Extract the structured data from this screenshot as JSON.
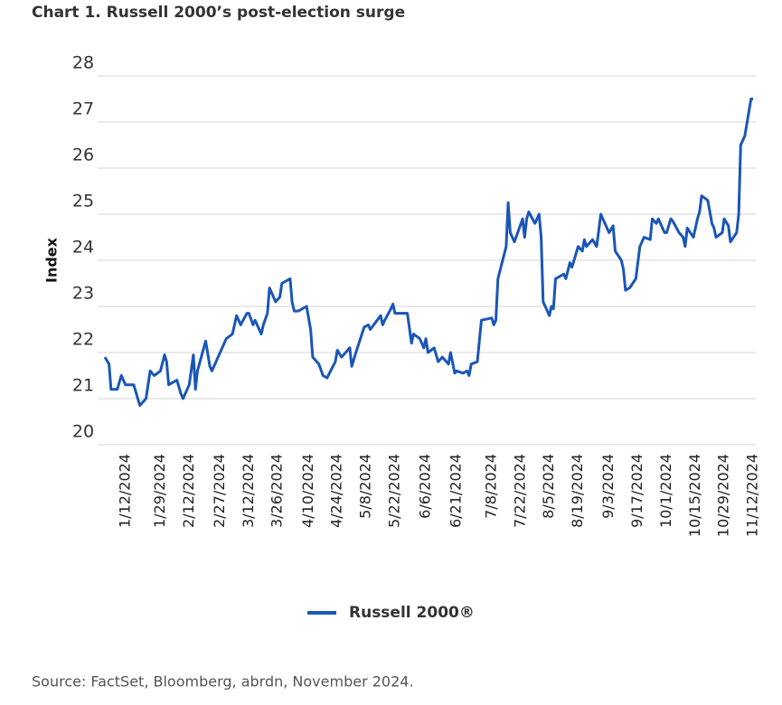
{
  "chart_data": {
    "type": "line",
    "title": "Chart 1. Russell 2000’s post-election surge",
    "y_label": "Index",
    "source": "Source: FactSet, Bloomberg, abrdn, November 2024.",
    "x": [
      "1/2/2024",
      "1/4/2024",
      "1/5/2024",
      "1/8/2024",
      "1/10/2024",
      "1/12/2024",
      "1/16/2024",
      "1/18/2024",
      "1/19/2024",
      "1/22/2024",
      "1/24/2024",
      "1/26/2024",
      "1/29/2024",
      "1/31/2024",
      "2/1/2024",
      "2/2/2024",
      "2/6/2024",
      "2/8/2024",
      "2/9/2024",
      "2/12/2024",
      "2/14/2024",
      "2/15/2024",
      "2/16/2024",
      "2/20/2024",
      "2/22/2024",
      "2/23/2024",
      "2/27/2024",
      "3/1/2024",
      "3/4/2024",
      "3/6/2024",
      "3/8/2024",
      "3/11/2024",
      "3/12/2024",
      "3/14/2024",
      "3/15/2024",
      "3/18/2024",
      "3/19/2024",
      "3/21/2024",
      "3/22/2024",
      "3/25/2024",
      "3/27/2024",
      "3/28/2024",
      "4/1/2024",
      "4/2/2024",
      "4/3/2024",
      "4/5/2024",
      "4/9/2024",
      "4/11/2024",
      "4/12/2024",
      "4/15/2024",
      "4/17/2024",
      "4/19/2024",
      "4/23/2024",
      "4/24/2024",
      "4/26/2024",
      "4/30/2024",
      "5/1/2024",
      "5/3/2024",
      "5/7/2024",
      "5/9/2024",
      "5/10/2024",
      "5/15/2024",
      "5/16/2024",
      "5/17/2024",
      "5/20/2024",
      "5/21/2024",
      "5/22/2024",
      "5/28/2024",
      "5/30/2024",
      "5/31/2024",
      "6/3/2024",
      "6/5/2024",
      "6/6/2024",
      "6/7/2024",
      "6/10/2024",
      "6/12/2024",
      "6/14/2024",
      "6/17/2024",
      "6/18/2024",
      "6/20/2024",
      "6/21/2024",
      "6/24/2024",
      "6/26/2024",
      "6/27/2024",
      "6/28/2024",
      "7/1/2024",
      "7/3/2024",
      "7/8/2024",
      "7/9/2024",
      "7/10/2024",
      "7/11/2024",
      "7/15/2024",
      "7/16/2024",
      "7/17/2024",
      "7/19/2024",
      "7/23/2024",
      "7/24/2024",
      "7/25/2024",
      "7/26/2024",
      "7/29/2024",
      "7/31/2024",
      "8/1/2024",
      "8/2/2024",
      "8/5/2024",
      "8/6/2024",
      "8/7/2024",
      "8/8/2024",
      "8/12/2024",
      "8/13/2024",
      "8/15/2024",
      "8/16/2024",
      "8/19/2024",
      "8/21/2024",
      "8/22/2024",
      "8/23/2024",
      "8/26/2024",
      "8/28/2024",
      "8/30/2024",
      "9/3/2024",
      "9/5/2024",
      "9/6/2024",
      "9/9/2024",
      "9/10/2024",
      "9/11/2024",
      "9/13/2024",
      "9/16/2024",
      "9/18/2024",
      "9/20/2024",
      "9/23/2024",
      "9/24/2024",
      "9/26/2024",
      "9/27/2024",
      "9/30/2024",
      "10/1/2024",
      "10/3/2024",
      "10/4/2024",
      "10/7/2024",
      "10/9/2024",
      "10/10/2024",
      "10/11/2024",
      "10/14/2024",
      "10/16/2024",
      "10/17/2024",
      "10/18/2024",
      "10/21/2024",
      "10/23/2024",
      "10/24/2024",
      "10/25/2024",
      "10/28/2024",
      "10/29/2024",
      "10/31/2024",
      "11/1/2024",
      "11/4/2024",
      "11/5/2024",
      "11/6/2024",
      "11/7/2024",
      "11/8/2024",
      "11/11/2024",
      "11/12/2024"
    ],
    "series": [
      {
        "name": "Russell 2000®",
        "color": "#1a56b8",
        "values": [
          21.9,
          21.75,
          21.2,
          21.2,
          21.5,
          21.3,
          21.3,
          21.0,
          20.85,
          21.0,
          21.6,
          21.5,
          21.6,
          21.95,
          21.8,
          21.3,
          21.4,
          21.1,
          21.0,
          21.3,
          21.95,
          21.2,
          21.6,
          22.25,
          21.7,
          21.6,
          22.0,
          22.3,
          22.4,
          22.8,
          22.6,
          22.85,
          22.85,
          22.6,
          22.7,
          22.4,
          22.6,
          22.85,
          23.4,
          23.1,
          23.2,
          23.5,
          23.6,
          23.1,
          22.9,
          22.9,
          23.0,
          22.5,
          21.9,
          21.75,
          21.5,
          21.45,
          21.8,
          22.05,
          21.9,
          22.1,
          21.7,
          22.0,
          22.55,
          22.6,
          22.5,
          22.8,
          22.6,
          22.7,
          22.95,
          23.05,
          22.85,
          22.85,
          22.2,
          22.4,
          22.3,
          22.1,
          22.3,
          22.0,
          22.1,
          21.8,
          21.9,
          21.75,
          22.0,
          21.55,
          21.6,
          21.55,
          21.6,
          21.5,
          21.75,
          21.8,
          22.7,
          22.75,
          22.6,
          22.7,
          23.6,
          24.3,
          25.25,
          24.6,
          24.4,
          24.9,
          24.5,
          24.9,
          25.05,
          24.8,
          25.0,
          24.5,
          23.1,
          22.8,
          23.0,
          22.95,
          23.6,
          23.7,
          23.6,
          23.95,
          23.85,
          24.3,
          24.2,
          24.45,
          24.3,
          24.45,
          24.3,
          25.0,
          24.6,
          24.75,
          24.2,
          24.0,
          23.8,
          23.35,
          23.4,
          23.6,
          24.3,
          24.5,
          24.45,
          24.9,
          24.8,
          24.9,
          24.6,
          24.6,
          24.9,
          24.85,
          24.6,
          24.5,
          24.3,
          24.7,
          24.5,
          24.9,
          25.05,
          25.4,
          25.3,
          24.8,
          24.7,
          24.5,
          24.6,
          24.9,
          24.75,
          24.4,
          24.6,
          25.0,
          26.5,
          26.6,
          26.7,
          27.5,
          27.5
        ]
      }
    ],
    "xlim": [
      "1/2/2024",
      "11/12/2024"
    ],
    "xticks": [
      "1/12/2024",
      "1/29/2024",
      "2/12/2024",
      "2/27/2024",
      "3/12/2024",
      "3/26/2024",
      "4/10/2024",
      "4/24/2024",
      "5/8/2024",
      "5/22/2024",
      "6/6/2024",
      "6/21/2024",
      "7/8/2024",
      "7/22/2024",
      "8/5/2024",
      "8/19/2024",
      "9/3/2024",
      "9/17/2024",
      "10/1/2024",
      "10/15/2024",
      "10/29/2024",
      "11/12/2024"
    ],
    "ylim": [
      20,
      28
    ],
    "yticks": [
      20,
      21,
      22,
      23,
      24,
      25,
      26,
      27,
      28
    ],
    "grid": true,
    "legend": "bottom"
  }
}
